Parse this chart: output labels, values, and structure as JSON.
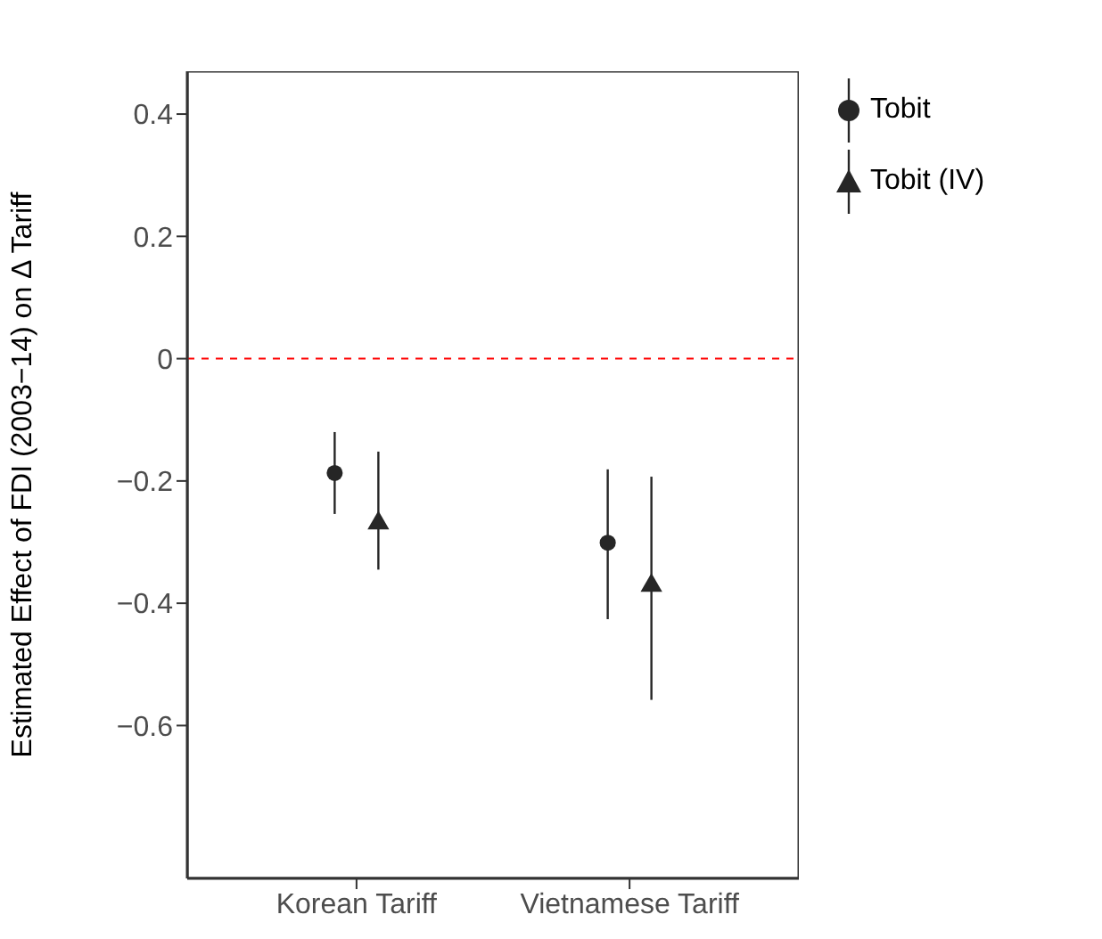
{
  "chart_data": {
    "type": "scatter",
    "ylabel": "Estimated Effect of FDI (2003−14) on Δ Tariff",
    "categories": [
      "Korean Tariff",
      "Vietnamese Tariff"
    ],
    "series": [
      {
        "name": "Tobit",
        "color": "#262626",
        "marker": "circle",
        "values": [
          -0.187,
          -0.301
        ],
        "errors": [
          [
            -0.254,
            -0.12
          ],
          [
            -0.426,
            -0.181
          ]
        ]
      },
      {
        "name": "Tobit (IV)",
        "color": "#262626",
        "marker": "triangle",
        "values": [
          -0.269,
          -0.371
        ],
        "errors": [
          [
            -0.345,
            -0.152
          ],
          [
            -0.558,
            -0.193
          ]
        ]
      }
    ],
    "ylim": [
      -0.85,
      0.47
    ],
    "yticks": [
      {
        "value": -0.6,
        "label": "−0.6"
      },
      {
        "value": -0.4,
        "label": "−0.4"
      },
      {
        "value": -0.2,
        "label": "−0.2"
      },
      0,
      0.2,
      0.4
    ],
    "ref_lines": [
      {
        "axis": "y",
        "value": 0,
        "color": "#ff0000",
        "line_style": "dashed"
      }
    ],
    "grid": false,
    "legend": "top right"
  }
}
